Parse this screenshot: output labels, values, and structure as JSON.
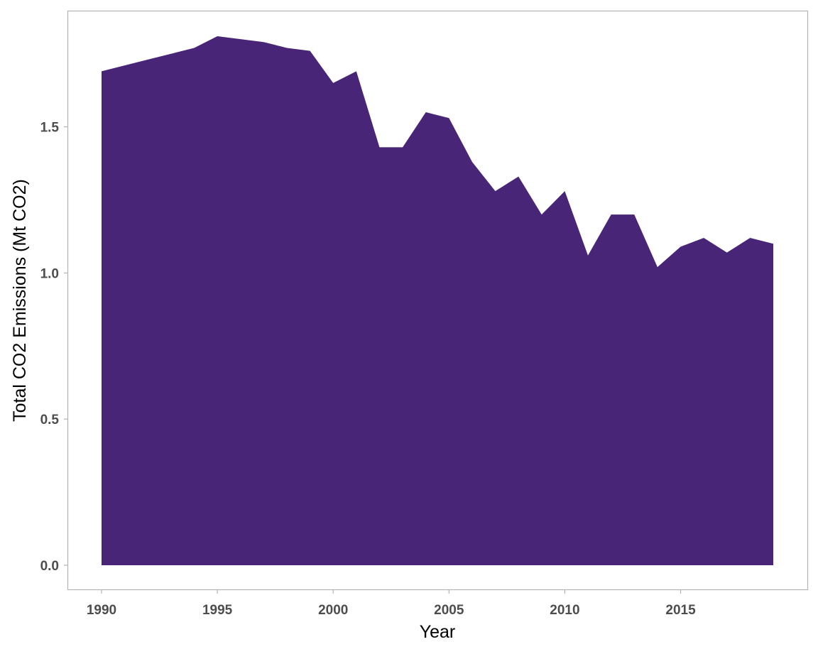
{
  "chart_data": {
    "type": "area",
    "title": "",
    "xlabel": "Year",
    "ylabel": "Total CO2 Emissions (Mt CO2)",
    "xlim": [
      1990,
      2019
    ],
    "ylim": [
      0,
      1.8
    ],
    "x_ticks": [
      1990,
      1995,
      2000,
      2005,
      2010,
      2015
    ],
    "y_ticks": [
      0.0,
      0.5,
      1.0,
      1.5
    ],
    "y_tick_labels": [
      "0.0",
      "0.5",
      "1.0",
      "1.5"
    ],
    "grid": false,
    "legend": "none",
    "fill_color": "#482576",
    "x": [
      1990,
      1991,
      1992,
      1993,
      1994,
      1995,
      1996,
      1997,
      1998,
      1999,
      2000,
      2001,
      2002,
      2003,
      2004,
      2005,
      2006,
      2007,
      2008,
      2009,
      2010,
      2011,
      2012,
      2013,
      2014,
      2015,
      2016,
      2017,
      2018,
      2019
    ],
    "series": [
      {
        "values": [
          1.69,
          1.71,
          1.73,
          1.75,
          1.77,
          1.81,
          1.8,
          1.79,
          1.77,
          1.76,
          1.65,
          1.69,
          1.43,
          1.43,
          1.55,
          1.53,
          1.38,
          1.28,
          1.33,
          1.2,
          1.28,
          1.06,
          1.2,
          1.2,
          1.02,
          1.09,
          1.12,
          1.07,
          1.12,
          1.1
        ]
      }
    ]
  }
}
